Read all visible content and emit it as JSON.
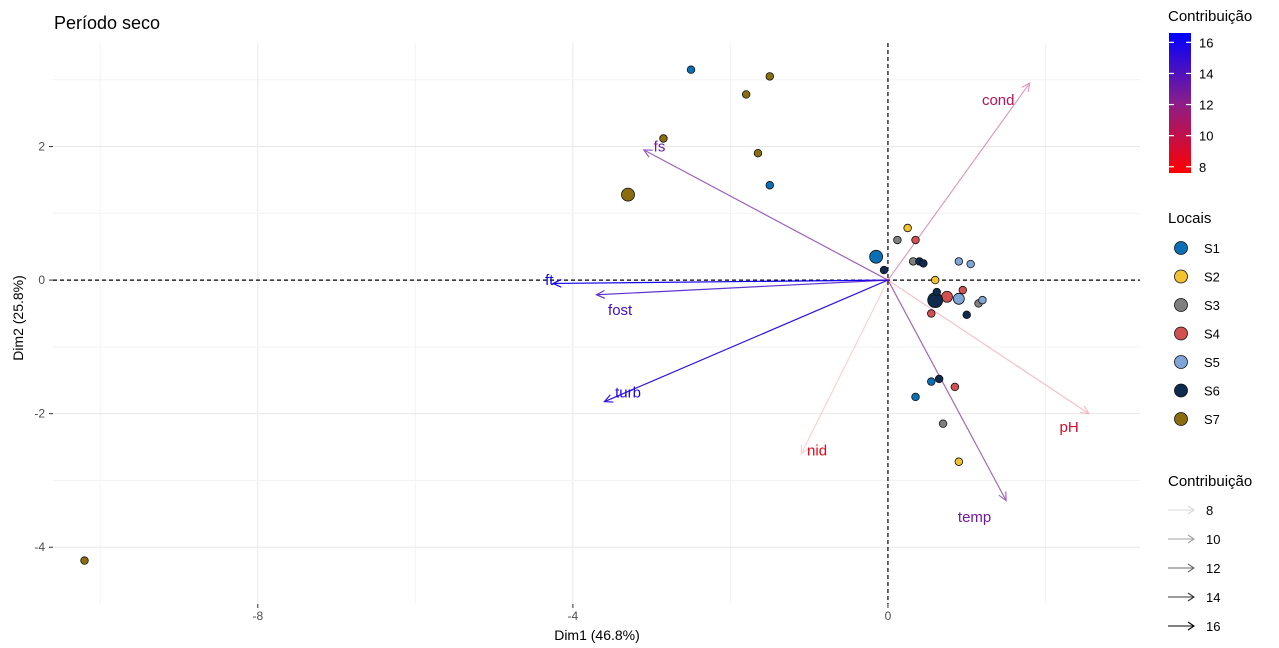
{
  "chart_data": {
    "type": "scatter",
    "title": "Período seco",
    "xlabel": "Dim1 (46.8%)",
    "ylabel": "Dim2 (25.8%)",
    "xlim": [
      -10.6,
      3.2
    ],
    "ylim": [
      -4.85,
      3.55
    ],
    "x_ticks": [
      -8,
      -4,
      0
    ],
    "y_ticks": [
      -4,
      -2,
      0,
      2
    ],
    "grid": true,
    "reference_lines": {
      "x": 0,
      "y": 0,
      "style": "dashed"
    },
    "variables": [
      {
        "name": "ft",
        "x": -4.25,
        "y": -0.05,
        "contrib": 16.0,
        "label_x": -4.3,
        "label_y": 0.0
      },
      {
        "name": "fost",
        "x": -3.7,
        "y": -0.22,
        "contrib": 14.5,
        "label_x": -3.4,
        "label_y": -0.45
      },
      {
        "name": "turb",
        "x": -3.6,
        "y": -1.82,
        "contrib": 15.5,
        "label_x": -3.3,
        "label_y": -1.68
      },
      {
        "name": "fs",
        "x": -3.1,
        "y": 1.95,
        "contrib": 13.0,
        "label_x": -2.9,
        "label_y": 2.0
      },
      {
        "name": "cond",
        "x": 1.8,
        "y": 2.95,
        "contrib": 10.5,
        "label_x": 1.4,
        "label_y": 2.7
      },
      {
        "name": "pH",
        "x": 2.55,
        "y": -2.0,
        "contrib": 9.0,
        "label_x": 2.3,
        "label_y": -2.2
      },
      {
        "name": "nid",
        "x": -1.1,
        "y": -2.6,
        "contrib": 8.2,
        "label_x": -0.9,
        "label_y": -2.55
      },
      {
        "name": "temp",
        "x": 1.5,
        "y": -3.3,
        "contrib": 12.8,
        "label_x": 1.1,
        "label_y": -3.55
      }
    ],
    "sites": [
      {
        "name": "S1",
        "color": "#0A6FB5",
        "points": [
          [
            -2.5,
            3.15,
            7
          ],
          [
            -1.5,
            1.42,
            7
          ],
          [
            -0.15,
            0.35,
            12
          ],
          [
            0.35,
            -1.75,
            7
          ],
          [
            0.55,
            -1.52,
            7
          ]
        ]
      },
      {
        "name": "S2",
        "color": "#F2C230",
        "points": [
          [
            0.25,
            0.78,
            7
          ],
          [
            0.6,
            0.0,
            7
          ],
          [
            0.9,
            -2.72,
            7
          ]
        ]
      },
      {
        "name": "S3",
        "color": "#7F7F7F",
        "points": [
          [
            0.12,
            0.6,
            7
          ],
          [
            0.32,
            0.28,
            7
          ],
          [
            0.7,
            -2.15,
            7
          ],
          [
            1.15,
            -0.35,
            7
          ]
        ]
      },
      {
        "name": "S4",
        "color": "#D2504F",
        "points": [
          [
            0.35,
            0.6,
            7
          ],
          [
            0.55,
            -0.5,
            7
          ],
          [
            0.85,
            -1.6,
            7
          ],
          [
            0.75,
            -0.25,
            10
          ],
          [
            0.95,
            -0.15,
            7
          ]
        ]
      },
      {
        "name": "S5",
        "color": "#7FA5D6",
        "points": [
          [
            0.9,
            0.28,
            7
          ],
          [
            1.05,
            0.24,
            7
          ],
          [
            1.2,
            -0.3,
            7
          ],
          [
            0.9,
            -0.28,
            10
          ]
        ]
      },
      {
        "name": "S6",
        "color": "#0E2B4E",
        "points": [
          [
            -0.05,
            0.15,
            7
          ],
          [
            0.4,
            0.28,
            7
          ],
          [
            0.6,
            -0.3,
            13
          ],
          [
            0.65,
            -1.48,
            7
          ],
          [
            0.62,
            -0.18,
            7
          ],
          [
            1.0,
            -0.52,
            7
          ],
          [
            0.45,
            0.25,
            7
          ]
        ]
      },
      {
        "name": "S7",
        "color": "#8B6D10",
        "points": [
          [
            -10.2,
            -4.2,
            7
          ],
          [
            -3.3,
            1.28,
            12
          ],
          [
            -2.85,
            2.12,
            7
          ],
          [
            -1.5,
            3.05,
            7
          ],
          [
            -1.8,
            2.78,
            7
          ],
          [
            -1.65,
            1.9,
            7
          ]
        ]
      }
    ],
    "color_legend": {
      "title": "Contribuição",
      "min": 7.6,
      "max": 16.6,
      "ticks": [
        8,
        10,
        12,
        14,
        16
      ],
      "low_color": "#FF0000",
      "high_color": "#0000FF"
    },
    "sites_legend": {
      "title": "Locais"
    },
    "alpha_legend": {
      "title": "Contribuição",
      "entries": [
        8,
        10,
        12,
        14,
        16
      ]
    }
  }
}
